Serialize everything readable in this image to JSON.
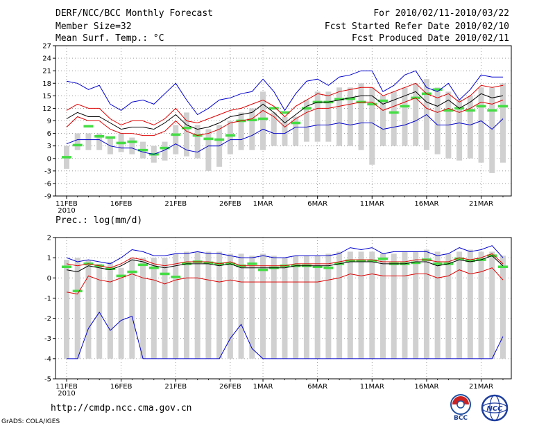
{
  "header": {
    "title": "DERF/NCC/BCC Monthly Forecast",
    "member_size": "Member Size=32",
    "variable": "Mean Surf. Temp.: °C",
    "period": "For 2010/02/11-2010/03/22",
    "start_date": "Fcst Started Refer Date 2010/02/10",
    "produced_date": "Fcst Produced Date 2010/02/11"
  },
  "footer": {
    "url": "http://cmdp.ncc.cma.gov.cn",
    "credit": "GrADS: COLA/IGES",
    "logo1_text": "BCC",
    "logo2_text": "NCC"
  },
  "colors": {
    "max_line": "#0000cc",
    "spread_line": "#dd0000",
    "mean_line": "#000000",
    "obs_mark": "#44dd44",
    "box": "#d0d0d0"
  },
  "chart_data": [
    {
      "type": "line",
      "title": "Mean Surf. Temp.: °C",
      "xlabel": "",
      "ylabel": "",
      "ylim": [
        -9,
        27
      ],
      "yticks": [
        -9,
        -6,
        -3,
        0,
        3,
        6,
        9,
        12,
        15,
        18,
        21,
        24,
        27
      ],
      "grid": true,
      "x_tick_labels": [
        {
          "day": 0,
          "label": "11FEB",
          "sub": "2010"
        },
        {
          "day": 5,
          "label": "16FEB"
        },
        {
          "day": 10,
          "label": "21FEB"
        },
        {
          "day": 15,
          "label": "26FEB"
        },
        {
          "day": 18,
          "label": "1MAR"
        },
        {
          "day": 23,
          "label": "6MAR"
        },
        {
          "day": 28,
          "label": "11MAR"
        },
        {
          "day": 33,
          "label": "16MAR"
        },
        {
          "day": 38,
          "label": "21MAR"
        }
      ],
      "days": 40,
      "boxes": [
        [
          -2.5,
          3
        ],
        [
          2,
          6
        ],
        [
          2,
          6
        ],
        [
          2,
          6
        ],
        [
          1,
          5
        ],
        [
          1.5,
          6
        ],
        [
          1,
          5
        ],
        [
          0,
          4
        ],
        [
          -1,
          3
        ],
        [
          -0.5,
          4
        ],
        [
          1,
          8
        ],
        [
          0.5,
          11
        ],
        [
          0,
          8
        ],
        [
          -3,
          7
        ],
        [
          -2,
          8
        ],
        [
          1,
          9
        ],
        [
          2,
          11
        ],
        [
          2,
          12
        ],
        [
          2,
          16
        ],
        [
          3,
          11
        ],
        [
          3,
          10
        ],
        [
          3,
          10
        ],
        [
          4,
          14
        ],
        [
          4,
          16
        ],
        [
          4,
          16
        ],
        [
          3,
          17
        ],
        [
          3,
          17
        ],
        [
          2,
          18
        ],
        [
          -1.5,
          17
        ],
        [
          3,
          15
        ],
        [
          3,
          16
        ],
        [
          3,
          17
        ],
        [
          3,
          18
        ],
        [
          2,
          19
        ],
        [
          1,
          17
        ],
        [
          0,
          16
        ],
        [
          -0.5,
          14
        ],
        [
          0,
          15
        ],
        [
          -1,
          17
        ],
        [
          -3.5,
          17
        ],
        [
          -1,
          18
        ]
      ],
      "series": [
        {
          "name": "ensemble max",
          "color_key": "max_line",
          "values": [
            18.5,
            18,
            16.5,
            17.5,
            13,
            11.5,
            13.5,
            14,
            13,
            15.5,
            18,
            14,
            10.5,
            12,
            14,
            14.5,
            15.5,
            16,
            19,
            16,
            11.5,
            15.5,
            18.5,
            19,
            17.5,
            19.5,
            20,
            21,
            21,
            16,
            17.5,
            20,
            21,
            17,
            16,
            18,
            14,
            16.5,
            20,
            19.5,
            19.5
          ]
        },
        {
          "name": "upper spread",
          "color_key": "spread_line",
          "values": [
            11.5,
            13,
            12,
            12,
            9.5,
            8,
            9,
            9,
            8,
            9.5,
            12,
            9,
            8.5,
            9.5,
            10.5,
            11.5,
            12,
            13,
            14,
            12.5,
            10,
            12.5,
            14,
            15.5,
            15,
            16,
            16.5,
            17,
            17,
            15,
            16,
            17,
            18,
            15.5,
            14.5,
            15.5,
            13.5,
            15,
            17.5,
            17,
            17.5
          ]
        },
        {
          "name": "ensemble mean",
          "color_key": "mean_line",
          "values": [
            9.5,
            11,
            10,
            10,
            8.5,
            7,
            7.5,
            7.5,
            7,
            8.5,
            10.5,
            8,
            7,
            7.5,
            8.5,
            10,
            10.5,
            11,
            13,
            11,
            8.5,
            10.5,
            12.5,
            13.5,
            13.5,
            14,
            14.5,
            15,
            15,
            13,
            14,
            15,
            16,
            13.5,
            12.5,
            14,
            12,
            13.5,
            15.5,
            14.5,
            15
          ]
        },
        {
          "name": "lower spread",
          "color_key": "spread_line",
          "values": [
            7.5,
            10,
            9,
            9,
            7,
            6,
            6,
            5.5,
            5.5,
            6.5,
            9,
            6.5,
            5.5,
            6,
            7,
            8.5,
            9,
            9.5,
            11.5,
            10,
            7.5,
            9.5,
            11,
            12,
            12,
            12.5,
            13,
            13.5,
            13.5,
            11.5,
            12.5,
            13.5,
            14.5,
            12,
            11,
            12,
            11,
            12,
            13.5,
            13,
            14
          ]
        },
        {
          "name": "ensemble min",
          "color_key": "max_line",
          "values": [
            3.5,
            4.5,
            4.5,
            4.5,
            3,
            2.5,
            2.5,
            1.5,
            1,
            2,
            3.5,
            2,
            1.5,
            3,
            3,
            4.5,
            4.5,
            5.5,
            7,
            6,
            6,
            7.5,
            7.5,
            8,
            8,
            8.5,
            8,
            8.5,
            8.5,
            7,
            7.5,
            8,
            9,
            10.5,
            8,
            8,
            8.5,
            8,
            9,
            7,
            9.5
          ]
        }
      ],
      "observed": [
        0.3,
        3.2,
        7.7,
        5.3,
        5,
        3.7,
        4,
        2,
        1,
        2.5,
        5.7,
        7.3,
        5.5,
        4.7,
        4.5,
        5.5,
        9,
        9.2,
        9.5,
        12,
        11,
        8.5,
        12,
        13.5,
        13.5,
        14.2,
        14.3,
        13.5,
        13,
        13.8,
        11,
        12.5,
        14.5,
        15.5,
        16.5,
        11.5,
        12,
        11.5,
        12.5,
        11.5,
        12.5
      ]
    },
    {
      "type": "line",
      "title": "Prec.: log(mm/d)",
      "xlabel": "",
      "ylabel": "",
      "ylim": [
        -5,
        2
      ],
      "yticks": [
        -5,
        -4,
        -3,
        -2,
        -1,
        0,
        1,
        2
      ],
      "grid": true,
      "x_tick_labels": [
        {
          "day": 0,
          "label": "11FEB",
          "sub": "2010"
        },
        {
          "day": 5,
          "label": "16FEB"
        },
        {
          "day": 10,
          "label": "21FEB"
        },
        {
          "day": 15,
          "label": "26FEB"
        },
        {
          "day": 18,
          "label": "1MAR"
        },
        {
          "day": 23,
          "label": "6MAR"
        },
        {
          "day": 28,
          "label": "11MAR"
        },
        {
          "day": 33,
          "label": "16MAR"
        },
        {
          "day": 38,
          "label": "21MAR"
        }
      ],
      "days": 40,
      "boxes": [
        [
          -4,
          0.9
        ],
        [
          -4,
          1
        ],
        [
          -4,
          0.9
        ],
        [
          -4,
          0.7
        ],
        [
          -4,
          0.8
        ],
        [
          -4,
          0.5
        ],
        [
          -4,
          1
        ],
        [
          -4,
          1
        ],
        [
          -4,
          1
        ],
        [
          -4,
          1
        ],
        [
          -4,
          1.2
        ],
        [
          -4,
          1.3
        ],
        [
          -4,
          1.3
        ],
        [
          -4,
          1.3
        ],
        [
          -4,
          1.3
        ],
        [
          -4,
          1.2
        ],
        [
          -4,
          1.2
        ],
        [
          -4,
          1.1
        ],
        [
          -4,
          1.2
        ],
        [
          -4,
          1.1
        ],
        [
          -4,
          1
        ],
        [
          -4,
          1.1
        ],
        [
          -4,
          1.1
        ],
        [
          -4,
          1.1
        ],
        [
          -4,
          1.2
        ],
        [
          -4,
          1.3
        ],
        [
          -4,
          1.3
        ],
        [
          -4,
          1.3
        ],
        [
          -4,
          1.3
        ],
        [
          -4,
          1.2
        ],
        [
          -4,
          1.2
        ],
        [
          -4,
          1.3
        ],
        [
          -4,
          1.3
        ],
        [
          -4,
          1.4
        ],
        [
          -4,
          1.3
        ],
        [
          -4,
          1.2
        ],
        [
          -4,
          1.3
        ],
        [
          -4,
          1.4
        ],
        [
          -4,
          1.3
        ],
        [
          -4,
          1.3
        ],
        [
          -4,
          1.1
        ]
      ],
      "series": [
        {
          "name": "ensemble max",
          "color_key": "max_line",
          "values": [
            1,
            0.8,
            0.9,
            0.8,
            0.7,
            1,
            1.4,
            1.3,
            1.1,
            1.1,
            1.2,
            1.2,
            1.3,
            1.2,
            1.2,
            1.1,
            1,
            1,
            1.1,
            1,
            1,
            1.1,
            1.1,
            1.1,
            1.1,
            1.2,
            1.5,
            1.4,
            1.5,
            1.2,
            1.3,
            1.3,
            1.3,
            1.3,
            1.1,
            1.2,
            1.5,
            1.3,
            1.4,
            1.6,
            1
          ]
        },
        {
          "name": "upper spread",
          "color_key": "spread_line",
          "values": [
            0.7,
            0.6,
            0.7,
            0.6,
            0.5,
            0.7,
            1,
            0.9,
            0.7,
            0.6,
            0.7,
            0.8,
            0.8,
            0.8,
            0.7,
            0.8,
            0.6,
            0.6,
            0.6,
            0.6,
            0.6,
            0.7,
            0.7,
            0.7,
            0.7,
            0.8,
            0.9,
            0.9,
            0.9,
            0.8,
            0.8,
            0.8,
            0.9,
            0.9,
            0.8,
            0.8,
            1,
            0.9,
            1,
            1.2,
            0.7
          ]
        },
        {
          "name": "ensemble mean",
          "color_key": "mean_line",
          "values": [
            0.4,
            0.3,
            0.6,
            0.5,
            0.4,
            0.6,
            0.9,
            0.8,
            0.6,
            0.5,
            0.6,
            0.7,
            0.7,
            0.7,
            0.6,
            0.7,
            0.5,
            0.5,
            0.5,
            0.5,
            0.5,
            0.6,
            0.6,
            0.6,
            0.6,
            0.7,
            0.8,
            0.8,
            0.8,
            0.7,
            0.7,
            0.7,
            0.8,
            0.8,
            0.6,
            0.7,
            0.9,
            0.8,
            0.9,
            1.1,
            0.6
          ]
        },
        {
          "name": "lower spread",
          "color_key": "spread_line",
          "values": [
            -0.7,
            -0.8,
            0.1,
            -0.1,
            -0.2,
            0,
            0.2,
            0,
            -0.1,
            -0.3,
            -0.1,
            0,
            0,
            -0.1,
            -0.2,
            -0.1,
            -0.2,
            -0.2,
            -0.2,
            -0.2,
            -0.2,
            -0.2,
            -0.2,
            -0.2,
            -0.1,
            0,
            0.2,
            0.1,
            0.2,
            0.1,
            0.1,
            0.1,
            0.2,
            0.2,
            0,
            0.1,
            0.4,
            0.2,
            0.3,
            0.5,
            -0.1
          ]
        },
        {
          "name": "ensemble min",
          "color_key": "max_line",
          "values": [
            -4,
            -4,
            -2.5,
            -1.7,
            -2.6,
            -2.1,
            -1.9,
            -4,
            -4,
            -4,
            -4,
            -4,
            -4,
            -4,
            -4,
            -3,
            -2.3,
            -3.5,
            -4,
            -4,
            -4,
            -4,
            -4,
            -4,
            -4,
            -4,
            -4,
            -4,
            -4,
            -4,
            -4,
            -4,
            -4,
            -4,
            -4,
            -4,
            -4,
            -4,
            -4,
            -4,
            -2.9
          ]
        }
      ],
      "observed": [
        0.55,
        -0.65,
        0.7,
        0.6,
        0.45,
        0.1,
        0.3,
        0.65,
        0.5,
        0.2,
        0.05,
        0.7,
        0.8,
        0.75,
        0.7,
        0.7,
        0.6,
        0.7,
        0.4,
        0.5,
        0.6,
        0.6,
        0.6,
        0.55,
        0.5,
        0.7,
        0.85,
        0.85,
        0.85,
        0.95,
        0.7,
        0.7,
        0.75,
        0.9,
        0.7,
        0.7,
        0.95,
        0.85,
        0.9,
        1.1,
        0.55
      ]
    }
  ]
}
